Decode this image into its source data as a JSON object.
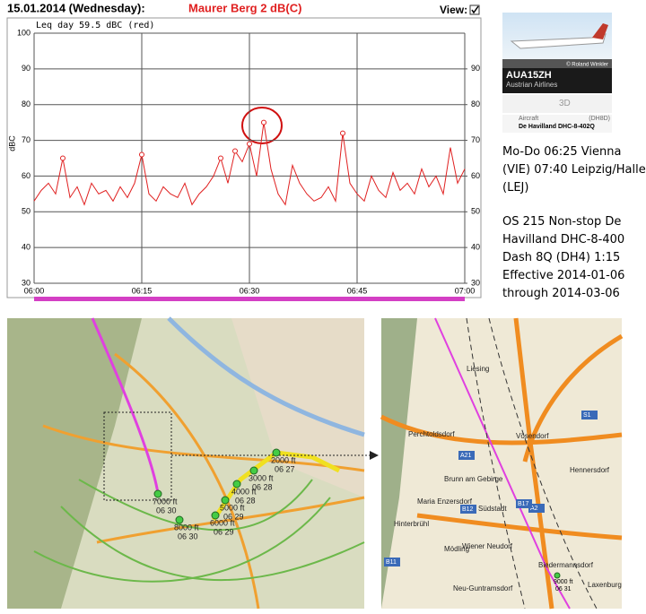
{
  "header": {
    "date": "15.01.2014 (Wednesday):",
    "station": "Maurer Berg 2 dB(C)",
    "view": "View:"
  },
  "chart_data": {
    "type": "line",
    "annotation": "Leq day 59.5 dBC (red)",
    "ylabel": "dBC",
    "x": [
      0,
      1,
      2,
      3,
      4,
      5,
      6,
      7,
      8,
      9,
      10,
      11,
      12,
      13,
      14,
      15,
      16,
      17,
      18,
      19,
      20,
      21,
      22,
      23,
      24,
      25,
      26,
      27,
      28,
      29,
      30,
      31,
      32,
      33,
      34,
      35,
      36,
      37,
      38,
      39,
      40,
      41,
      42,
      43,
      44,
      45,
      46,
      47,
      48,
      49,
      50,
      51,
      52,
      53,
      54,
      55,
      56,
      57,
      58,
      59,
      60
    ],
    "series": [
      {
        "color": "#e02020",
        "values": [
          53,
          56,
          58,
          55,
          65,
          54,
          57,
          52,
          58,
          55,
          56,
          53,
          57,
          54,
          58,
          66,
          55,
          53,
          57,
          55,
          54,
          58,
          52,
          55,
          57,
          60,
          65,
          58,
          67,
          64,
          69,
          60,
          75,
          62,
          55,
          52,
          63,
          58,
          55,
          53,
          54,
          57,
          53,
          72,
          58,
          55,
          53,
          60,
          56,
          54,
          61,
          56,
          58,
          55,
          62,
          57,
          60,
          55,
          68,
          58,
          62
        ]
      }
    ],
    "peaks": {
      "x": [
        4,
        15,
        26,
        28,
        30,
        32,
        43
      ],
      "values": [
        65,
        66,
        65,
        67,
        69,
        75,
        72
      ],
      "color": "#e02020"
    },
    "xlim": [
      0,
      60
    ],
    "xticks": [
      {
        "value": 0,
        "label": "06:00"
      },
      {
        "value": 15,
        "label": "06:15"
      },
      {
        "value": 30,
        "label": "06:30"
      },
      {
        "value": 45,
        "label": "06:45"
      },
      {
        "value": 60,
        "label": "07:00"
      }
    ],
    "ylim": [
      30,
      100
    ],
    "yticks": [
      30,
      40,
      50,
      60,
      70,
      80,
      90,
      100
    ],
    "y2lim": [
      30,
      100
    ],
    "y2ticks": [
      30,
      40,
      50,
      60,
      70,
      80,
      90
    ],
    "grid": true
  },
  "flight": {
    "photo_credit": "© Roland Winkler",
    "callsign": "AUA15ZH",
    "airline": "Austrian Airlines",
    "btn3d": "3D",
    "aircraft_label": "Aircraft",
    "type_code": "(DH8D)",
    "aircraft": "De Havilland DHC-8-402Q",
    "schedule": "Mo-Do 06:25 Vienna (VIE) 07:40 Leipzig/Halle (LEJ)",
    "details": "OS 215 Non-stop De Havilland DHC-8-400 Dash 8Q (DH4) 1:15 Effective 2014-01-06 through 2014-03-06"
  },
  "left_map": {
    "labels": [
      {
        "alt": "2000 ft",
        "time": "06 27"
      },
      {
        "alt": "3000 ft",
        "time": "06 28"
      },
      {
        "alt": "4000 ft",
        "time": "06 28"
      },
      {
        "alt": "5000 ft",
        "time": "06 29"
      },
      {
        "alt": "6000 ft",
        "time": "06 29"
      },
      {
        "alt": "7000 ft",
        "time": "06 30"
      },
      {
        "alt": "8000 ft",
        "time": "06 30"
      }
    ]
  },
  "right_map": {
    "places": [
      "Liesing",
      "Perchtoldsdorf",
      "Vösendorf",
      "Hennersdorf",
      "Brunn am Gebirge",
      "Maria Enzersdorf",
      "Südstadt",
      "Hinterbrühl",
      "Mödling",
      "Wiener Neudorf",
      "Biedermannsdorf",
      "Laxenburg",
      "Neu-Guntramsdorf"
    ],
    "roads": [
      "A21",
      "A2",
      "B17",
      "S1",
      "B11",
      "B12"
    ],
    "flight_label": {
      "alt": "9000 ft",
      "time": "06 31"
    }
  }
}
